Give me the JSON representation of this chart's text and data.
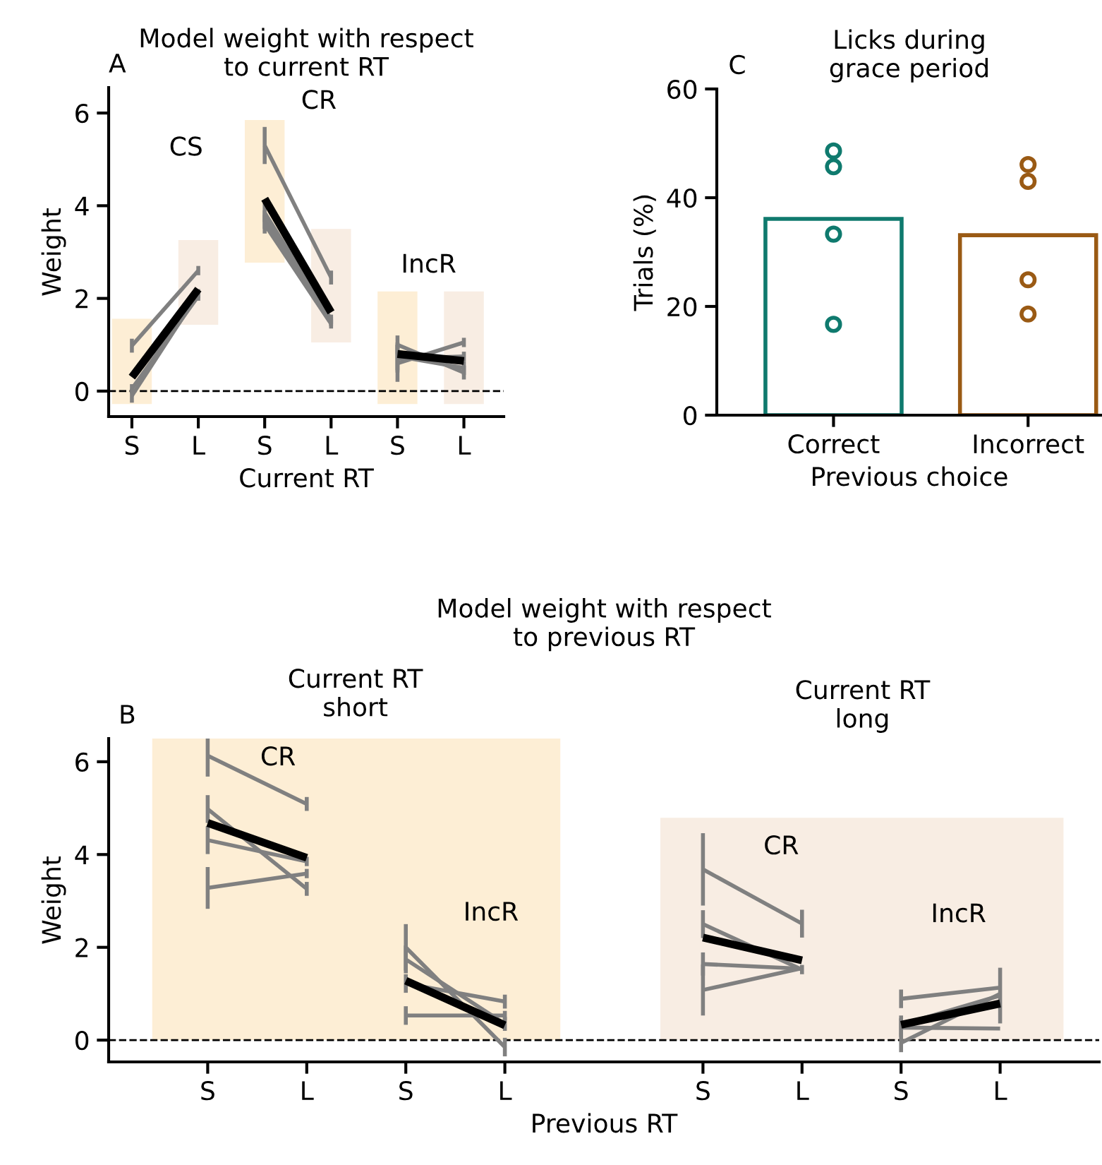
{
  "chart_data": [
    {
      "type": "line",
      "title": "Model weight with respect\nto current RT",
      "xlabel": "Current RT",
      "ylabel": "Weight",
      "categories": [
        "S",
        "L",
        "S",
        "L",
        "S",
        "L"
      ],
      "ylim": [
        -0.55,
        6.55
      ],
      "yticks": [
        0,
        2,
        4,
        6
      ],
      "ref_lines": [
        {
          "axis": "y",
          "value": 0,
          "line_style": "dashed",
          "color": "#000000"
        }
      ],
      "annotations": [
        "A",
        "CS",
        "CR",
        "IncR"
      ],
      "series": [
        {
          "type": "bar",
          "base": [
            -0.28,
            1.43,
            2.77,
            1.05,
            -0.28,
            -0.28
          ],
          "values": [
            1.84,
            1.83,
            3.08,
            2.45,
            2.43,
            2.43
          ],
          "colors": [
            "#fdeed5",
            "#f8ede3",
            "#fdeed5",
            "#f8ede3",
            "#fdeed5",
            "#f8ede3"
          ]
        },
        {
          "color": "#808080",
          "values": [
            0.98,
            2.6,
            null,
            null,
            null,
            null
          ],
          "errors": [
            0.15,
            0.1,
            null,
            null,
            null,
            null
          ]
        },
        {
          "color": "#808080",
          "values": [
            -0.1,
            2.1,
            null,
            null,
            null,
            null
          ],
          "errors": [
            0.15,
            0.1,
            null,
            null,
            null,
            null
          ]
        },
        {
          "color": "#808080",
          "values": [
            0.05,
            2.05,
            null,
            null,
            null,
            null
          ],
          "errors": [
            0.1,
            0.1,
            null,
            null,
            null,
            null
          ]
        },
        {
          "color": "#808080",
          "values": [
            null,
            null,
            5.3,
            2.45,
            null,
            null
          ],
          "errors": [
            null,
            null,
            0.4,
            0.15,
            null,
            null
          ]
        },
        {
          "color": "#808080",
          "values": [
            null,
            null,
            3.85,
            1.55,
            null,
            null
          ],
          "errors": [
            null,
            null,
            0.2,
            0.1,
            null,
            null
          ]
        },
        {
          "color": "#808080",
          "values": [
            null,
            null,
            3.7,
            1.5,
            null,
            null
          ],
          "errors": [
            null,
            null,
            0.2,
            0.1,
            null,
            null
          ]
        },
        {
          "color": "#808080",
          "values": [
            null,
            null,
            3.6,
            1.45,
            null,
            null
          ],
          "errors": [
            null,
            null,
            0.2,
            0.1,
            null,
            null
          ]
        },
        {
          "color": "#808080",
          "values": [
            null,
            null,
            null,
            null,
            1.0,
            0.4
          ],
          "errors": [
            null,
            null,
            null,
            null,
            0.2,
            0.15
          ]
        },
        {
          "color": "#808080",
          "values": [
            null,
            null,
            null,
            null,
            0.6,
            1.05
          ],
          "errors": [
            null,
            null,
            null,
            null,
            0.4,
            0.1
          ]
        },
        {
          "color": "#808080",
          "values": [
            null,
            null,
            null,
            null,
            0.7,
            0.75
          ],
          "errors": [
            null,
            null,
            null,
            null,
            0.3,
            0.1
          ]
        },
        {
          "color": "#808080",
          "values": [
            null,
            null,
            null,
            null,
            0.75,
            0.5
          ],
          "errors": [
            null,
            null,
            null,
            null,
            0.3,
            0.15
          ]
        },
        {
          "color": "#000000",
          "values": [
            0.3,
            2.2,
            null,
            null,
            null,
            null
          ]
        },
        {
          "color": "#000000",
          "values": [
            null,
            null,
            4.15,
            1.7,
            null,
            null
          ]
        },
        {
          "color": "#000000",
          "values": [
            null,
            null,
            null,
            null,
            0.8,
            0.65
          ]
        }
      ]
    },
    {
      "type": "bar",
      "title": "Licks during\ngrace period",
      "xlabel": "Previous choice",
      "ylabel": "Trials (%)",
      "categories": [
        "Correct",
        "Incorrect"
      ],
      "ylim": [
        0,
        60
      ],
      "yticks": [
        0,
        20,
        40,
        60
      ],
      "annotations": [
        "C"
      ],
      "series": [
        {
          "values": [
            36.1,
            33.1
          ],
          "colors": [
            "#0f7a6e",
            "#9a5a14"
          ]
        },
        {
          "type": "scatter",
          "marker": "circle",
          "color": "#0f7a6e",
          "x": [
            "Correct",
            "Correct",
            "Correct",
            "Correct"
          ],
          "values": [
            48.6,
            45.7,
            33.3,
            16.7
          ]
        },
        {
          "type": "scatter",
          "marker": "circle",
          "color": "#9a5a14",
          "x": [
            "Incorrect",
            "Incorrect",
            "Incorrect",
            "Incorrect"
          ],
          "values": [
            46.1,
            43.0,
            24.9,
            18.6
          ]
        }
      ]
    },
    {
      "type": "line",
      "title": "Model weight with respect\nto previous RT",
      "xlabel": "Previous RT",
      "ylabel": "Weight",
      "categories": [
        "S",
        "L",
        "S",
        "L",
        null,
        "S",
        "L",
        "S",
        "L"
      ],
      "ylim": [
        -0.47,
        6.5
      ],
      "yticks": [
        0,
        2,
        4,
        6
      ],
      "ref_lines": [
        {
          "axis": "y",
          "value": 0,
          "line_style": "dashed",
          "color": "#000000"
        }
      ],
      "annotations": [
        "B",
        "Current RT\nshort",
        "Current RT\nlong",
        "CR",
        "IncR",
        "CR",
        "IncR"
      ],
      "series": [
        {
          "color": "#808080",
          "values": [
            6.13,
            5.09,
            null,
            null,
            null,
            null,
            null,
            null,
            null
          ],
          "errors": [
            0.45,
            0.15,
            null,
            null,
            null,
            null,
            null,
            null,
            null
          ]
        },
        {
          "color": "#808080",
          "values": [
            4.98,
            3.26,
            null,
            null,
            null,
            null,
            null,
            null,
            null
          ],
          "errors": [
            0.3,
            0.15,
            null,
            null,
            null,
            null,
            null,
            null,
            null
          ]
        },
        {
          "color": "#808080",
          "values": [
            4.31,
            3.85,
            null,
            null,
            null,
            null,
            null,
            null,
            null
          ],
          "errors": [
            0.3,
            0.1,
            null,
            null,
            null,
            null,
            null,
            null,
            null
          ]
        },
        {
          "color": "#808080",
          "values": [
            3.28,
            3.59,
            null,
            null,
            null,
            null,
            null,
            null,
            null
          ],
          "errors": [
            0.45,
            0.1,
            null,
            null,
            null,
            null,
            null,
            null,
            null
          ]
        },
        {
          "color": "#808080",
          "values": [
            null,
            null,
            2.0,
            -0.15,
            null,
            null,
            null,
            null,
            null
          ],
          "errors": [
            null,
            null,
            0.5,
            0.2,
            null,
            null,
            null,
            null,
            null
          ]
        },
        {
          "color": "#808080",
          "values": [
            null,
            null,
            1.74,
            0.35,
            null,
            null,
            null,
            null,
            null
          ],
          "errors": [
            null,
            null,
            0.3,
            0.15,
            null,
            null,
            null,
            null,
            null
          ]
        },
        {
          "color": "#808080",
          "values": [
            null,
            null,
            1.22,
            0.83,
            null,
            null,
            null,
            null,
            null
          ],
          "errors": [
            null,
            null,
            0.2,
            0.15,
            null,
            null,
            null,
            null,
            null
          ]
        },
        {
          "color": "#808080",
          "values": [
            null,
            null,
            0.53,
            0.53,
            null,
            null,
            null,
            null,
            null
          ],
          "errors": [
            null,
            null,
            0.2,
            0.1,
            null,
            null,
            null,
            null,
            null
          ]
        },
        {
          "color": "#808080",
          "values": [
            null,
            null,
            null,
            null,
            null,
            3.68,
            2.51,
            null,
            null
          ],
          "errors": [
            null,
            null,
            null,
            null,
            null,
            0.78,
            0.3,
            null,
            null
          ]
        },
        {
          "color": "#808080",
          "values": [
            null,
            null,
            null,
            null,
            null,
            2.5,
            1.52,
            null,
            null
          ],
          "errors": [
            null,
            null,
            null,
            null,
            null,
            0.3,
            0.1,
            null,
            null
          ]
        },
        {
          "color": "#808080",
          "values": [
            null,
            null,
            null,
            null,
            null,
            1.64,
            1.54,
            null,
            null
          ],
          "errors": [
            null,
            null,
            null,
            null,
            null,
            0.25,
            null,
            null,
            null
          ]
        },
        {
          "color": "#808080",
          "values": [
            null,
            null,
            null,
            null,
            null,
            1.08,
            1.55,
            null,
            null
          ],
          "errors": [
            null,
            null,
            null,
            null,
            null,
            0.55,
            null,
            null,
            null
          ]
        },
        {
          "color": "#808080",
          "values": [
            null,
            null,
            null,
            null,
            null,
            null,
            null,
            0.89,
            1.13
          ],
          "errors": [
            null,
            null,
            null,
            null,
            null,
            null,
            null,
            0.2,
            null
          ]
        },
        {
          "color": "#808080",
          "values": [
            null,
            null,
            null,
            null,
            null,
            null,
            null,
            0.33,
            0.96
          ],
          "errors": [
            null,
            null,
            null,
            null,
            null,
            null,
            null,
            0.2,
            0.6
          ]
        },
        {
          "color": "#808080",
          "values": [
            null,
            null,
            null,
            null,
            null,
            null,
            null,
            0.27,
            0.25
          ],
          "errors": [
            null,
            null,
            null,
            null,
            null,
            null,
            null,
            0.2,
            null
          ]
        },
        {
          "color": "#808080",
          "values": [
            null,
            null,
            null,
            null,
            null,
            null,
            null,
            -0.06,
            1.0
          ],
          "errors": [
            null,
            null,
            null,
            null,
            null,
            null,
            null,
            0.2,
            null
          ]
        },
        {
          "color": "#000000",
          "values": [
            4.68,
            3.93,
            null,
            null,
            null,
            null,
            null,
            null,
            null
          ]
        },
        {
          "color": "#000000",
          "values": [
            null,
            null,
            1.28,
            0.32,
            null,
            null,
            null,
            null,
            null
          ]
        },
        {
          "color": "#000000",
          "values": [
            null,
            null,
            null,
            null,
            null,
            2.21,
            1.72,
            null,
            null
          ]
        },
        {
          "color": "#000000",
          "values": [
            null,
            null,
            null,
            null,
            null,
            null,
            null,
            0.33,
            0.79
          ]
        }
      ]
    }
  ]
}
